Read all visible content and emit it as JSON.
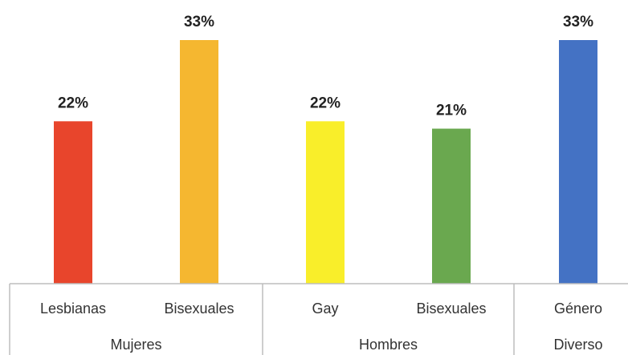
{
  "chart_data": {
    "type": "bar",
    "title": "",
    "xlabel": "",
    "ylabel": "",
    "ylim": [
      0,
      33
    ],
    "grid": false,
    "legend": "none",
    "value_format": "percent",
    "categories": [
      "Lesbianas",
      "Bisexuales",
      "Gay",
      "Bisexuales",
      "Género Diverso"
    ],
    "values": [
      22,
      33,
      22,
      21,
      33
    ],
    "value_labels": [
      "22%",
      "33%",
      "22%",
      "21%",
      "33%"
    ],
    "colors": [
      "#e8452c",
      "#f5b730",
      "#f9ee2a",
      "#6aa84f",
      "#4472c4"
    ],
    "groups": [
      {
        "label": "Mujeres",
        "members": [
          0,
          1
        ]
      },
      {
        "label": "Hombres",
        "members": [
          2,
          3
        ]
      },
      {
        "label": "",
        "members": [
          4
        ]
      }
    ]
  }
}
